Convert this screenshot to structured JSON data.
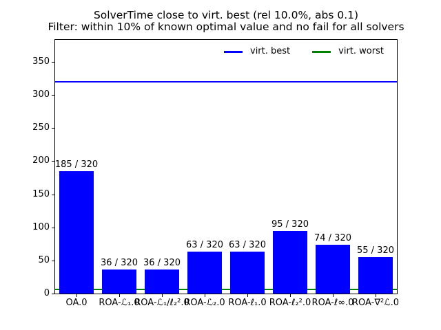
{
  "figure": {
    "title_line1": "SolverTime close to virt. best (rel 10.0%, abs 0.1)",
    "title_line2": "Filter: within 10% of known optimal value and no fail for all solvers"
  },
  "legend": {
    "items": [
      {
        "label": "virt. best",
        "color": "#0000ff"
      },
      {
        "label": "virt. worst",
        "color": "#008000"
      }
    ]
  },
  "chart_data": {
    "type": "bar",
    "title": "SolverTime close to virt. best (rel 10.0%, abs 0.1)\nFilter: within 10% of known optimal value and no fail for all solvers",
    "categories": [
      "OA.0",
      "ROA-ℒ₁.0",
      "ROA-ℒ₁/ℓ₂².0",
      "ROA-ℒ₂.0",
      "ROA-ℓ₁.0",
      "ROA-ℓ₂².0",
      "ROA-ℓ∞.0",
      "ROA-∇²ℒ.0"
    ],
    "values": [
      185,
      36,
      36,
      63,
      63,
      95,
      74,
      55
    ],
    "total_instances": 320,
    "bar_labels": [
      "185 / 320",
      "36 / 320",
      "36 / 320",
      "63 / 320",
      "63 / 320",
      "95 / 320",
      "74 / 320",
      "55 / 320"
    ],
    "bar_color": "#0000ff",
    "xlabel": "",
    "ylabel": "",
    "yticks": [
      0,
      50,
      100,
      150,
      200,
      250,
      300,
      350
    ],
    "ylim": [
      0,
      383.3
    ],
    "grid": false,
    "legend_position": "upper right, horizontal, no frame",
    "hlines": [
      {
        "name": "virt-best-line",
        "label": "virt. best",
        "value": 320,
        "color": "#0000ff"
      },
      {
        "name": "virt-worst-line",
        "label": "virt. worst",
        "value": 6,
        "color": "#008000"
      }
    ]
  }
}
